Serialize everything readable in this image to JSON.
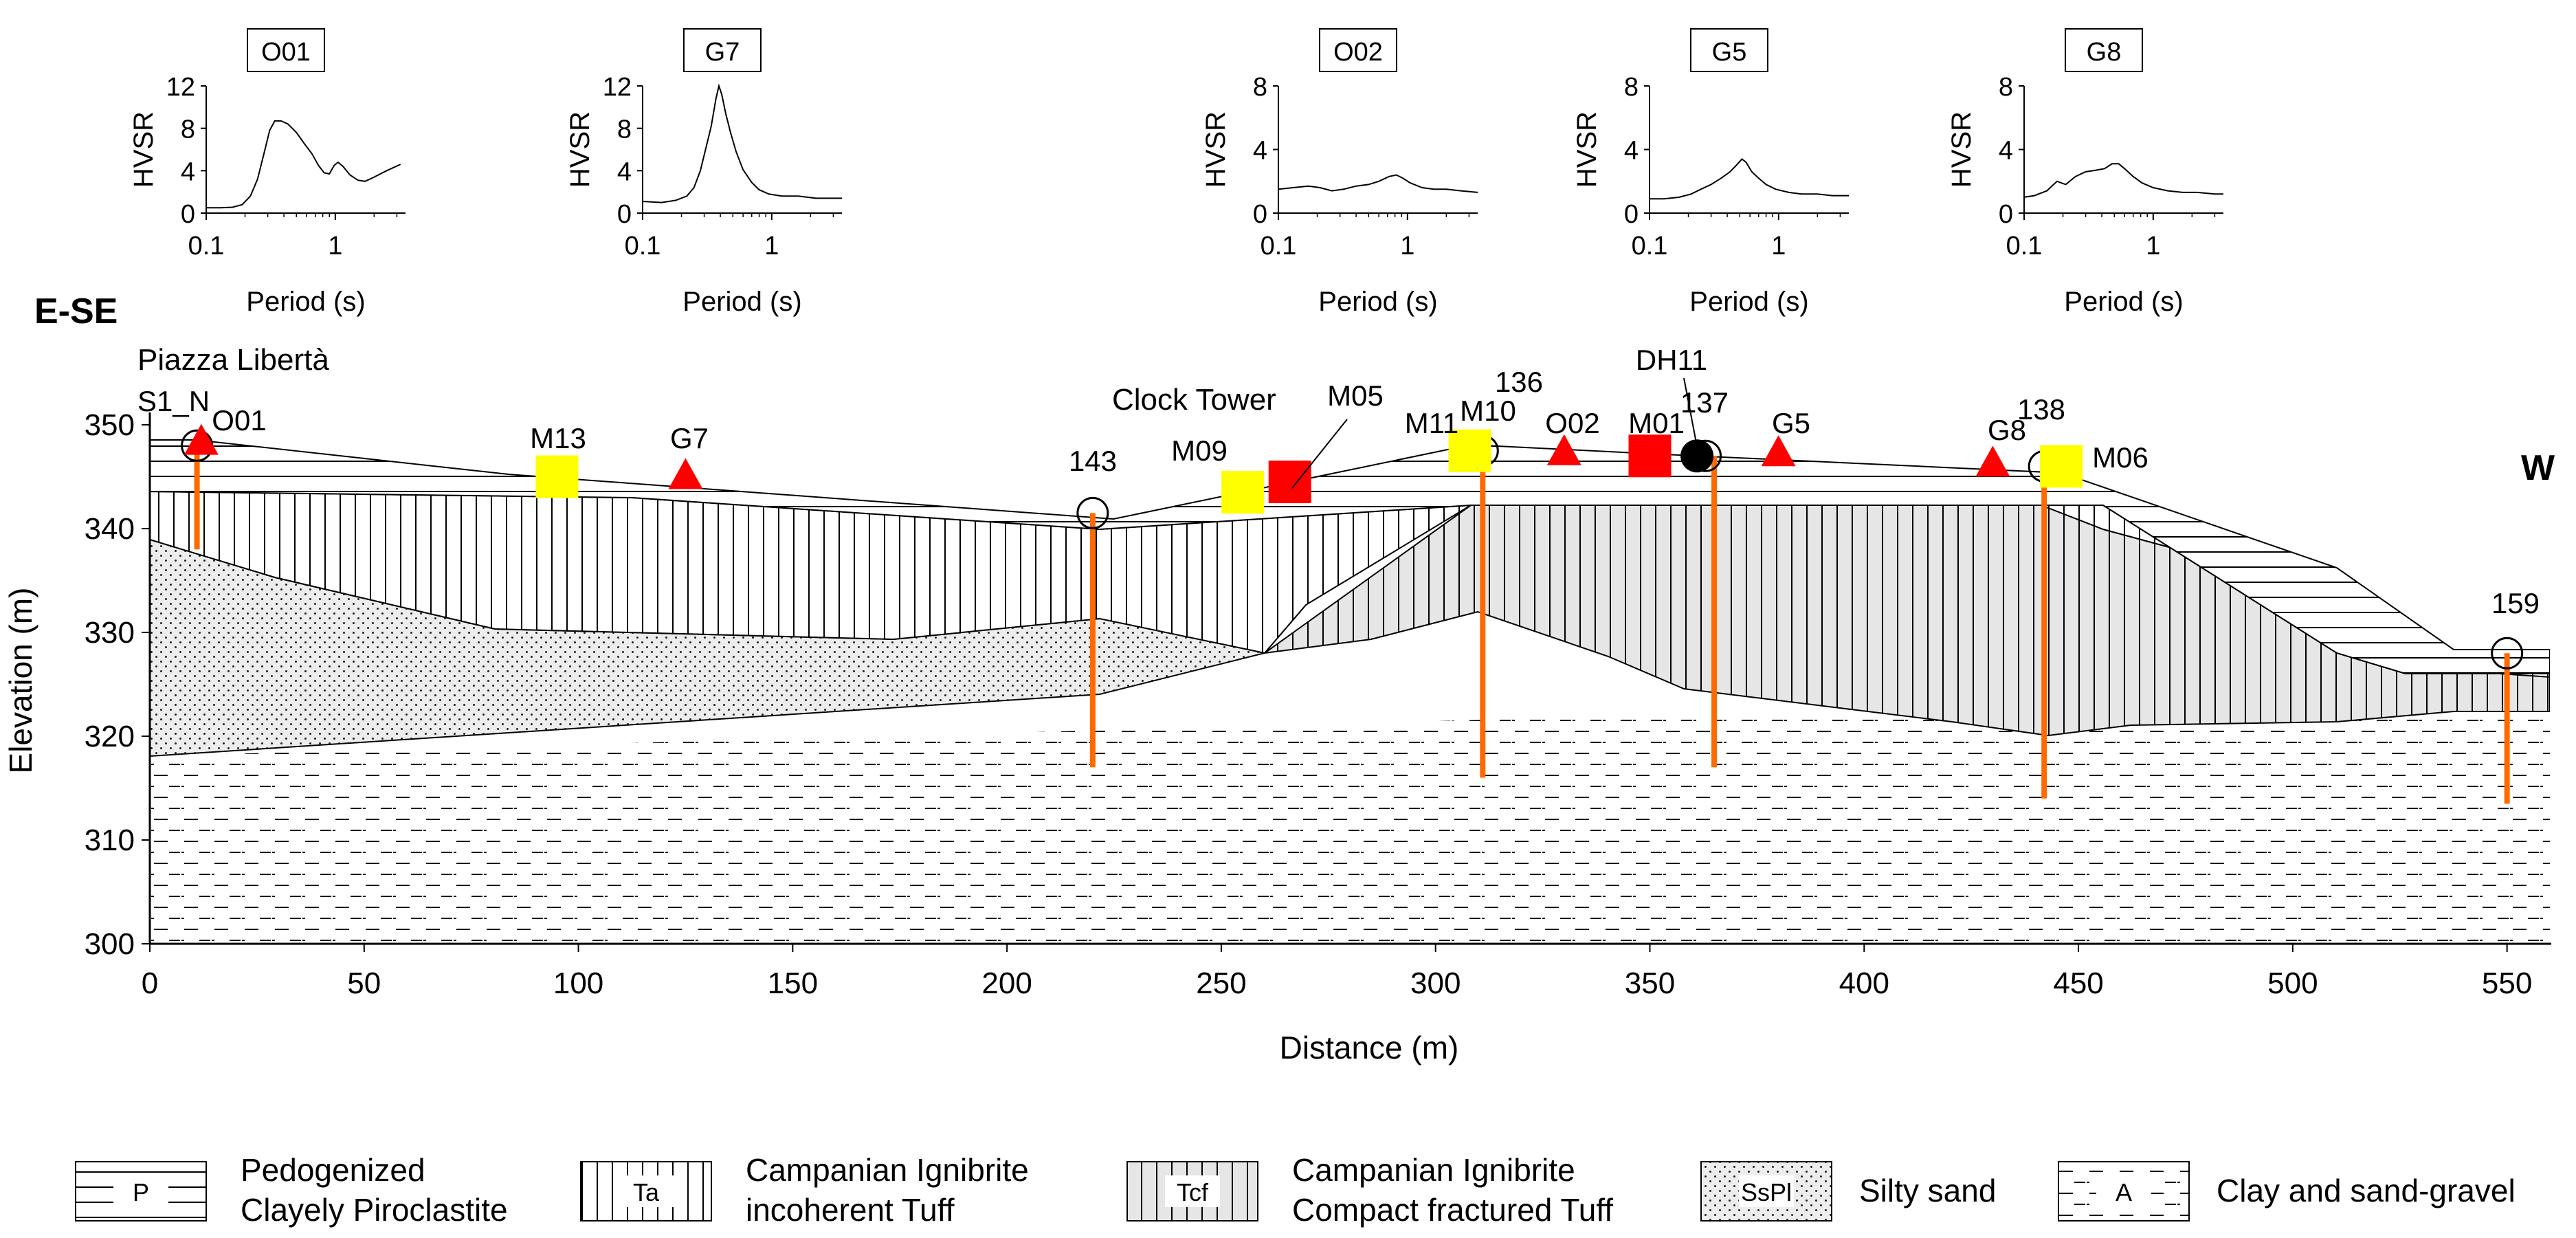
{
  "colors": {
    "triangle": "#ff0000",
    "square_red": "#ff0000",
    "square_yellow": "#ffff00",
    "borehole": "#ff6a00",
    "compact_tuff_fill": "#e6e6e6",
    "silty_sand_fill": "#e9e9e9",
    "dh_marker": "#000000"
  },
  "direction_left": "E-SE",
  "direction_right": "W",
  "place_label": "Piazza Libertà",
  "hvsr_panels": [
    {
      "name": "O01",
      "ylabel": "HVSR",
      "xlabel": "Period (s)",
      "y_ticks": [
        "0",
        "4",
        "8",
        "12"
      ],
      "y_max": 12,
      "x_ticks": [
        "0.1",
        "1"
      ],
      "x_range": [
        0.1,
        3.5
      ],
      "curve": [
        [
          0.1,
          0.5
        ],
        [
          0.13,
          0.5
        ],
        [
          0.16,
          0.55
        ],
        [
          0.19,
          0.8
        ],
        [
          0.22,
          1.6
        ],
        [
          0.25,
          3.2
        ],
        [
          0.28,
          5.6
        ],
        [
          0.31,
          7.8
        ],
        [
          0.34,
          8.7
        ],
        [
          0.38,
          8.7
        ],
        [
          0.43,
          8.4
        ],
        [
          0.5,
          7.6
        ],
        [
          0.58,
          6.5
        ],
        [
          0.66,
          5.6
        ],
        [
          0.74,
          4.5
        ],
        [
          0.82,
          3.8
        ],
        [
          0.9,
          3.7
        ],
        [
          0.98,
          4.5
        ],
        [
          1.05,
          4.8
        ],
        [
          1.15,
          4.4
        ],
        [
          1.3,
          3.6
        ],
        [
          1.5,
          3.1
        ],
        [
          1.7,
          3.0
        ],
        [
          2.0,
          3.4
        ],
        [
          2.5,
          4.0
        ],
        [
          3.2,
          4.6
        ]
      ]
    },
    {
      "name": "G7",
      "ylabel": "HVSR",
      "xlabel": "Period (s)",
      "y_ticks": [
        "0",
        "4",
        "8",
        "12"
      ],
      "y_max": 12,
      "x_ticks": [
        "0.1",
        "1"
      ],
      "x_range": [
        0.1,
        3.5
      ],
      "curve": [
        [
          0.1,
          1.1
        ],
        [
          0.14,
          1.0
        ],
        [
          0.18,
          1.2
        ],
        [
          0.22,
          1.6
        ],
        [
          0.25,
          2.4
        ],
        [
          0.28,
          4.0
        ],
        [
          0.31,
          6.2
        ],
        [
          0.34,
          8.2
        ],
        [
          0.37,
          10.8
        ],
        [
          0.39,
          12.0
        ],
        [
          0.41,
          11.2
        ],
        [
          0.44,
          9.4
        ],
        [
          0.48,
          7.6
        ],
        [
          0.53,
          5.8
        ],
        [
          0.6,
          4.1
        ],
        [
          0.7,
          2.9
        ],
        [
          0.8,
          2.2
        ],
        [
          0.95,
          1.8
        ],
        [
          1.2,
          1.6
        ],
        [
          1.6,
          1.6
        ],
        [
          2.2,
          1.4
        ],
        [
          3.0,
          1.4
        ],
        [
          3.5,
          1.4
        ]
      ]
    },
    {
      "name": "O02",
      "ylabel": "HVSR",
      "xlabel": "Period (s)",
      "y_ticks": [
        "0",
        "4",
        "8"
      ],
      "y_max": 8,
      "x_ticks": [
        "0.1",
        "1"
      ],
      "x_range": [
        0.1,
        3.5
      ],
      "curve": [
        [
          0.1,
          1.5
        ],
        [
          0.13,
          1.6
        ],
        [
          0.17,
          1.7
        ],
        [
          0.21,
          1.6
        ],
        [
          0.26,
          1.4
        ],
        [
          0.32,
          1.5
        ],
        [
          0.4,
          1.7
        ],
        [
          0.5,
          1.8
        ],
        [
          0.6,
          2.0
        ],
        [
          0.72,
          2.3
        ],
        [
          0.82,
          2.4
        ],
        [
          0.92,
          2.2
        ],
        [
          1.05,
          1.9
        ],
        [
          1.3,
          1.6
        ],
        [
          1.6,
          1.5
        ],
        [
          2.0,
          1.5
        ],
        [
          2.6,
          1.4
        ],
        [
          3.5,
          1.3
        ]
      ]
    },
    {
      "name": "G5",
      "ylabel": "HVSR",
      "xlabel": "Period (s)",
      "y_ticks": [
        "0",
        "4",
        "8"
      ],
      "y_max": 8,
      "x_ticks": [
        "0.1",
        "1"
      ],
      "x_range": [
        0.1,
        3.5
      ],
      "curve": [
        [
          0.1,
          0.9
        ],
        [
          0.13,
          0.9
        ],
        [
          0.17,
          1.0
        ],
        [
          0.21,
          1.2
        ],
        [
          0.25,
          1.5
        ],
        [
          0.3,
          1.8
        ],
        [
          0.36,
          2.2
        ],
        [
          0.42,
          2.6
        ],
        [
          0.47,
          3.0
        ],
        [
          0.52,
          3.4
        ],
        [
          0.56,
          3.2
        ],
        [
          0.62,
          2.6
        ],
        [
          0.7,
          2.2
        ],
        [
          0.8,
          1.8
        ],
        [
          0.95,
          1.5
        ],
        [
          1.2,
          1.3
        ],
        [
          1.5,
          1.2
        ],
        [
          2.0,
          1.2
        ],
        [
          2.6,
          1.1
        ],
        [
          3.5,
          1.1
        ]
      ]
    },
    {
      "name": "G8",
      "ylabel": "HVSR",
      "xlabel": "Period (s)",
      "y_ticks": [
        "0",
        "4",
        "8"
      ],
      "y_max": 8,
      "x_ticks": [
        "0.1",
        "1"
      ],
      "x_range": [
        0.1,
        3.5
      ],
      "curve": [
        [
          0.1,
          1.0
        ],
        [
          0.12,
          1.1
        ],
        [
          0.15,
          1.4
        ],
        [
          0.18,
          2.0
        ],
        [
          0.21,
          1.8
        ],
        [
          0.25,
          2.3
        ],
        [
          0.3,
          2.6
        ],
        [
          0.36,
          2.7
        ],
        [
          0.42,
          2.8
        ],
        [
          0.48,
          3.1
        ],
        [
          0.54,
          3.1
        ],
        [
          0.6,
          2.8
        ],
        [
          0.7,
          2.3
        ],
        [
          0.82,
          1.9
        ],
        [
          1.0,
          1.6
        ],
        [
          1.3,
          1.4
        ],
        [
          1.7,
          1.3
        ],
        [
          2.2,
          1.3
        ],
        [
          3.0,
          1.2
        ],
        [
          3.5,
          1.2
        ]
      ]
    }
  ],
  "chart_data": {
    "type": "cross-section",
    "xlabel": "Distance (m)",
    "ylabel": "Elevation (m)",
    "xlim": [
      0,
      560
    ],
    "ylim": [
      300,
      352
    ],
    "x_ticks": [
      "0",
      "50",
      "100",
      "150",
      "200",
      "250",
      "300",
      "350",
      "400",
      "450",
      "500",
      "550"
    ],
    "y_ticks": [
      "300",
      "310",
      "320",
      "330",
      "340",
      "350"
    ],
    "surface": [
      [
        0,
        348
      ],
      [
        15,
        348
      ],
      [
        75,
        345
      ],
      [
        150,
        343
      ],
      [
        220,
        341.5
      ],
      [
        305,
        347.5
      ],
      [
        335,
        347.5
      ],
      [
        395,
        347
      ],
      [
        440,
        346
      ],
      [
        500,
        341
      ],
      [
        515,
        336
      ],
      [
        537,
        328
      ],
      [
        560,
        328
      ]
    ],
    "layers": [
      {
        "code": "P",
        "name_line1": "Pedogenized",
        "name_line2": "Clayely Piroclastite",
        "pattern": "horiz"
      },
      {
        "code": "Ta",
        "name_line1": "Campanian Ignibrite",
        "name_line2": "incoherent Tuff",
        "pattern": "vert"
      },
      {
        "code": "Tcf",
        "name_line1": "Campanian Ignibrite",
        "name_line2": "Compact fractured Tuff",
        "pattern": "vertgray"
      },
      {
        "code": "SsPl",
        "name_line1": "Silty sand",
        "name_line2": "",
        "pattern": "dots"
      },
      {
        "code": "A",
        "name_line1": "Clay and sand-gravel",
        "name_line2": "",
        "pattern": "dash"
      }
    ],
    "boreholes": [
      {
        "label": "S1_N",
        "x": 11,
        "top": 348,
        "bottom": 338
      },
      {
        "label": "143",
        "x": 220,
        "top": 341.5,
        "bottom": 317
      },
      {
        "label": "136",
        "x": 311,
        "top": 347.5,
        "bottom": 316
      },
      {
        "label": "137",
        "x": 365,
        "top": 347,
        "bottom": 317
      },
      {
        "label": "138",
        "x": 442,
        "top": 346,
        "bottom": 314
      },
      {
        "label": "159",
        "x": 550,
        "top": 328,
        "bottom": 313.5
      }
    ],
    "circles": [
      {
        "label": "S1_N",
        "x": 11,
        "y": 348
      },
      {
        "label": "143",
        "x": 220,
        "y": 341.5
      },
      {
        "label": "136",
        "x": 311,
        "y": 347.5
      },
      {
        "label": "137",
        "x": 363,
        "y": 347
      },
      {
        "label": "138",
        "x": 442,
        "y": 346
      },
      {
        "label": "159",
        "x": 550,
        "y": 328
      }
    ],
    "triangles": [
      {
        "label": "O01",
        "x": 12,
        "y": 348.3
      },
      {
        "label": "G7",
        "x": 125,
        "y": 345
      },
      {
        "label": "O02",
        "x": 330,
        "y": 347.3
      },
      {
        "label": "G5",
        "x": 380,
        "y": 347.2
      },
      {
        "label": "G8",
        "x": 430,
        "y": 346.2
      }
    ],
    "squares": [
      {
        "label": "M13",
        "x": 95,
        "y": 345,
        "color": "yellow"
      },
      {
        "label": "M09",
        "x": 255,
        "y": 343.5,
        "color": "yellow"
      },
      {
        "label": "M05",
        "x": 266,
        "y": 344.5,
        "color": "red"
      },
      {
        "label": "M11",
        "x": 308,
        "y": 347.5,
        "color": "yellow"
      },
      {
        "label": "M01",
        "x": 350,
        "y": 347,
        "color": "red"
      },
      {
        "label": "M06",
        "x": 446,
        "y": 346,
        "color": "yellow"
      }
    ],
    "dh_marker": {
      "label": "DH11",
      "x": 361,
      "y": 347
    },
    "annotations": [
      "Clock Tower",
      "M10"
    ]
  }
}
